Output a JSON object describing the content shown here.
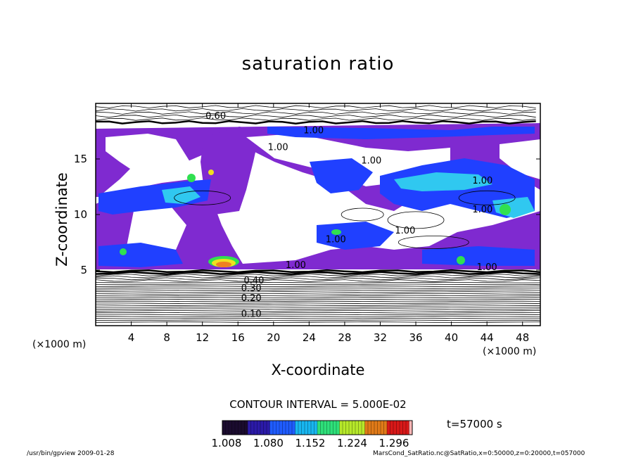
{
  "chart_data": {
    "type": "heatmap",
    "title": "saturation ratio",
    "xlabel": "X-coordinate",
    "ylabel": "Z-coordinate",
    "x_unit_label_left": "(×1000 m)",
    "x_unit_label_right": "(×1000 m)",
    "xlim": [
      0,
      50
    ],
    "ylim": [
      0,
      20
    ],
    "x_ticks": [
      "4",
      "8",
      "12",
      "16",
      "20",
      "24",
      "28",
      "32",
      "36",
      "40",
      "44",
      "48"
    ],
    "x_tick_values": [
      4,
      8,
      12,
      16,
      20,
      24,
      28,
      32,
      36,
      40,
      44,
      48
    ],
    "y_ticks": [
      "5",
      "10",
      "15"
    ],
    "y_tick_values": [
      5,
      10,
      15
    ],
    "contour_labels": [
      {
        "text": "0.10",
        "x": 17.5,
        "z": 0.8
      },
      {
        "text": "0.20",
        "x": 17.5,
        "z": 2.2
      },
      {
        "text": "0.30",
        "x": 17.5,
        "z": 3.1
      },
      {
        "text": "0.40",
        "x": 17.8,
        "z": 3.8
      },
      {
        "text": "0.60",
        "x": 13.5,
        "z": 18.6
      },
      {
        "text": "1.00",
        "x": 24.5,
        "z": 17.3
      },
      {
        "text": "1.00",
        "x": 20.5,
        "z": 15.8
      },
      {
        "text": "1.00",
        "x": 31.0,
        "z": 14.6
      },
      {
        "text": "1.00",
        "x": 43.5,
        "z": 12.8
      },
      {
        "text": "1.00",
        "x": 43.5,
        "z": 10.2
      },
      {
        "text": "1.00",
        "x": 34.8,
        "z": 8.3
      },
      {
        "text": "1.00",
        "x": 27.0,
        "z": 7.5
      },
      {
        "text": "1.00",
        "x": 22.5,
        "z": 5.2
      },
      {
        "text": "1.00",
        "x": 44.0,
        "z": 5.0
      }
    ],
    "contour_interval_text": "CONTOUR INTERVAL = 5.000E-02",
    "colorbar": {
      "tick_labels": [
        "1.008",
        "1.080",
        "1.152",
        "1.224",
        "1.296"
      ],
      "min": 1.008,
      "max": 1.296,
      "colors": [
        "#1a0b2e",
        "#2b1aa8",
        "#1f5cff",
        "#18b6f0",
        "#2ee07a",
        "#b6e82a",
        "#e07a18",
        "#d81818",
        "#ffb6b6"
      ]
    },
    "time_text": "t=57000 s"
  },
  "footer": {
    "left": "/usr/bin/gpview  2009-01-28",
    "right": "MarsCond_SatRatio.nc@SatRatio,x=0:50000,z=0:20000,t=057000"
  },
  "colors": {
    "purple": "#7f2ad0",
    "blue": "#2040ff",
    "lightblue": "#30c8f0",
    "green": "#30e050",
    "yellow": "#f0e020",
    "orange": "#f08020"
  }
}
